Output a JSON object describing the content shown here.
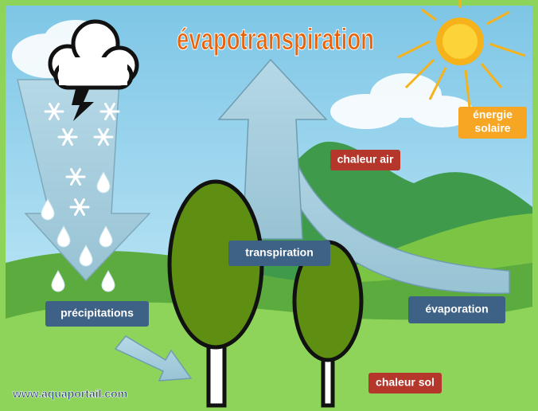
{
  "title": "évapotranspiration",
  "sun_label": {
    "line1": "énergie",
    "line2": "solaire"
  },
  "labels": {
    "chaleur_air": "chaleur air",
    "transpiration": "transpiration",
    "precipitations": "précipitations",
    "evaporation": "évaporation",
    "chaleur_sol": "chaleur sol"
  },
  "watermark": "www.aquaportail.com"
}
